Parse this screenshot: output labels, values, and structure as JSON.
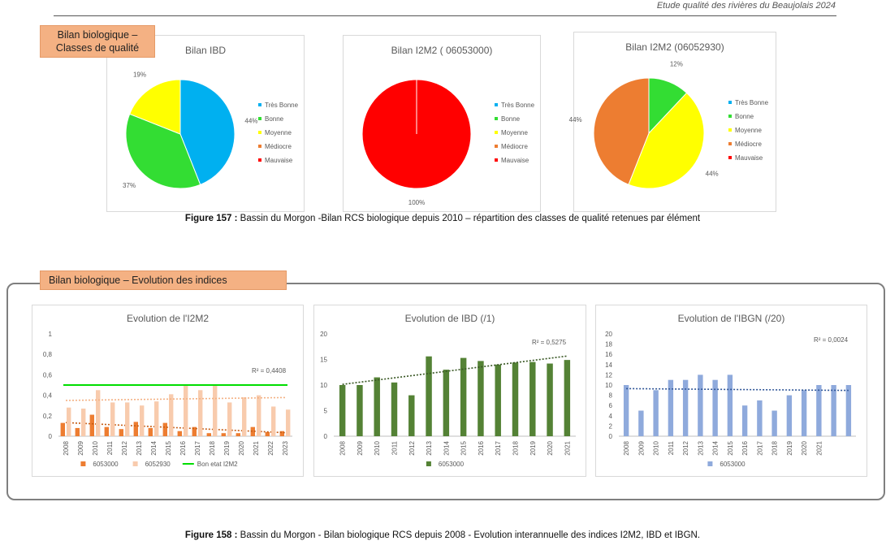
{
  "header": {
    "title": "Etude qualité des rivières du Beaujolais 2024"
  },
  "tag1": "Bilan biologique – Classes de qualité",
  "tag2": "Bilan biologique – Evolution des indices",
  "legend_classes": [
    {
      "label": "Très Bonne",
      "color": "#00b0f0"
    },
    {
      "label": "Bonne",
      "color": "#33dd33"
    },
    {
      "label": "Moyenne",
      "color": "#ffff00"
    },
    {
      "label": "Médiocre",
      "color": "#ed7d31"
    },
    {
      "label": "Mauvaise",
      "color": "#ff0000"
    }
  ],
  "caption157": {
    "prefix": "Figure 157 :",
    "text": " Bassin du Morgon -Bilan RCS biologique depuis 2010 – répartition des classes de qualité retenues par élément"
  },
  "caption158": {
    "prefix": "Figure 158 :",
    "text": " Bassin du Morgon - Bilan biologique RCS depuis 2008 - Evolution interannuelle des indices I2M2, IBD et IBGN."
  },
  "chart_data": [
    {
      "type": "pie",
      "title": "Bilan IBD",
      "slices": [
        {
          "label": "Très Bonne",
          "value": 44,
          "color": "#00b0f0",
          "text": "44%"
        },
        {
          "label": "Bonne",
          "value": 37,
          "color": "#33dd33",
          "text": "37%"
        },
        {
          "label": "Moyenne",
          "value": 19,
          "color": "#ffff00",
          "text": "19%"
        }
      ]
    },
    {
      "type": "pie",
      "title": "Bilan I2M2 ( 06053000)",
      "slices": [
        {
          "label": "Mauvaise",
          "value": 100,
          "color": "#ff0000",
          "text": "100%"
        }
      ]
    },
    {
      "type": "pie",
      "title": "Bilan I2M2 (06052930)",
      "slices": [
        {
          "label": "Bonne",
          "value": 12,
          "color": "#33dd33",
          "text": "12%"
        },
        {
          "label": "Moyenne",
          "value": 44,
          "color": "#ffff00",
          "text": "44%"
        },
        {
          "label": "Médiocre",
          "value": 44,
          "color": "#ed7d31",
          "text": "44%"
        }
      ]
    },
    {
      "type": "bar",
      "title": "Evolution de l'I2M2",
      "categories": [
        "2008",
        "2009",
        "2010",
        "2011",
        "2012",
        "2013",
        "2014",
        "2015",
        "2016",
        "2017",
        "2018",
        "2019",
        "2020",
        "2021",
        "2022",
        "2023"
      ],
      "ylim": [
        0,
        1
      ],
      "yticks": [
        "0",
        "0,2",
        "0,4",
        "0,6",
        "0,8",
        "1"
      ],
      "series": [
        {
          "name": "6053000",
          "color": "#ed7d31",
          "values": [
            0.13,
            0.08,
            0.21,
            0.09,
            0.07,
            0.14,
            0.08,
            0.13,
            0.05,
            0.09,
            0.03,
            0.03,
            0.03,
            0.09,
            0.04,
            0.05
          ]
        },
        {
          "name": "6052930",
          "color": "#f8cbad",
          "values": [
            0.28,
            0.27,
            0.45,
            0.33,
            0.33,
            0.3,
            0.34,
            0.41,
            0.5,
            0.45,
            0.5,
            0.33,
            0.38,
            0.4,
            0.29,
            0.26
          ]
        }
      ],
      "reference": {
        "name": "Bon etat I2M2",
        "value": 0.5,
        "color": "#00dd00"
      },
      "r2": "R² = 0,4408"
    },
    {
      "type": "bar",
      "title": "Evolution de IBD (/1)",
      "categories": [
        "2008",
        "2009",
        "2010",
        "2011",
        "2012",
        "2013",
        "2014",
        "2015",
        "2016",
        "2017",
        "2018",
        "2019",
        "2020",
        "2021"
      ],
      "ylim": [
        0,
        20
      ],
      "yticks": [
        "0",
        "5",
        "10",
        "15",
        "20"
      ],
      "series": [
        {
          "name": "6053000",
          "color": "#548235",
          "values": [
            10,
            10,
            11.5,
            10.5,
            8,
            15.6,
            13,
            15.3,
            14.7,
            14,
            14.4,
            14.5,
            14.2,
            14.9
          ]
        }
      ],
      "r2": "R² = 0,5275"
    },
    {
      "type": "bar",
      "title": "Evolution de l'IBGN (/20)",
      "categories": [
        "2008",
        "2009",
        "2010",
        "2011",
        "2012",
        "2013",
        "2014",
        "2015",
        "2016",
        "2017",
        "2018",
        "2019",
        "2020",
        "2021",
        "",
        ""
      ],
      "ylim": [
        0,
        20
      ],
      "yticks": [
        "0",
        "2",
        "4",
        "6",
        "8",
        "10",
        "12",
        "14",
        "16",
        "18",
        "20"
      ],
      "series": [
        {
          "name": "6053000",
          "color": "#8faadc",
          "values": [
            10,
            5,
            9,
            11,
            11,
            12,
            11,
            12,
            6,
            7,
            5,
            8,
            9,
            10,
            10,
            10
          ]
        }
      ],
      "r2": "R² = 0,0024"
    }
  ]
}
